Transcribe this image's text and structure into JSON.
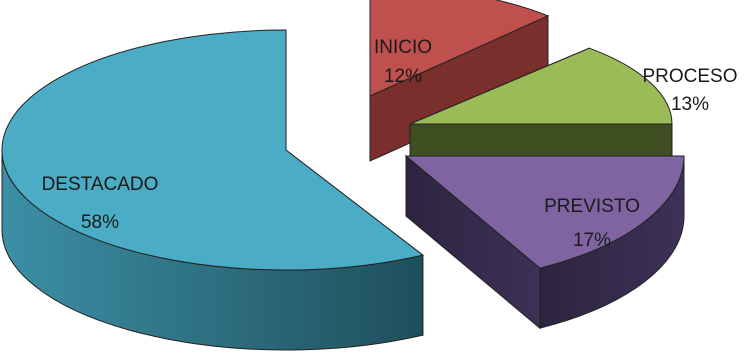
{
  "chart_data": {
    "type": "pie",
    "style": "3d-exploded",
    "slices": [
      {
        "name": "INICIO",
        "label": "12%",
        "value": 12,
        "color": "#c0504d",
        "side": "#7a2f2d"
      },
      {
        "name": "PROCESO",
        "label": "13%",
        "value": 13,
        "color": "#9bbb59",
        "side": "#3f4f22"
      },
      {
        "name": "PREVISTO",
        "label": "17%",
        "value": 17,
        "color": "#8064a2",
        "side": "#2e2540"
      },
      {
        "name": "DESTACADO",
        "label": "58%",
        "value": 58,
        "color": "#4bacc6",
        "side": "#2b6f82"
      }
    ],
    "legend": "none",
    "data_labels": "inside-or-near-slice"
  }
}
